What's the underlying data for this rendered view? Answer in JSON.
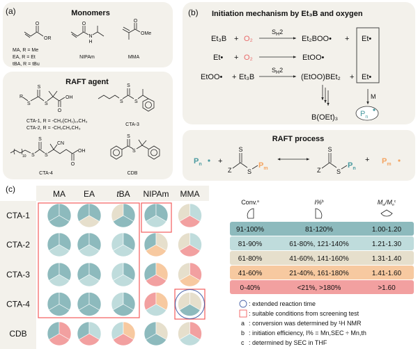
{
  "panel_a": {
    "label": "(a)",
    "monomers_title": "Monomers",
    "acrylate": {
      "O": "O",
      "OR": "OR",
      "names": [
        "MA,  R = Me",
        "EA,  R = Et",
        "tBA,  R = tBu"
      ]
    },
    "nipam": {
      "O": "O",
      "N": "N",
      "H": "H",
      "name": "NIPAm"
    },
    "mma": {
      "O": "O",
      "OMe": "OMe",
      "name": "MMA"
    },
    "raft_title": "RAFT agent",
    "cta12": {
      "R": "R",
      "S1": "S",
      "S2": "S",
      "S3": "S",
      "OH": "OH",
      "O": "O",
      "names": [
        "CTA-1, R = -CH₂(CH₂)₁₀CH₃",
        "CTA-2, R = -CH₂CH₂CH₃"
      ]
    },
    "cta3": {
      "S1": "S",
      "S2": "S",
      "S3": "S",
      "name": "CTA-3"
    },
    "cta4": {
      "n": "10",
      "S1": "S",
      "S2": "S",
      "S3": "S",
      "CN": "CN",
      "OH": "OH",
      "O": "O",
      "name": "CTA-4"
    },
    "cdb": {
      "S1": "S",
      "S2": "S",
      "name": "CDB"
    }
  },
  "panel_b": {
    "label": "(b)",
    "title": "Initiation mechanism by Et₃B and oxygen",
    "row1": {
      "r1": "Et₃B",
      "plus1": "+",
      "r2": "O₂",
      "cond_S": "S",
      "cond_H": "H",
      "cond_2": "2",
      "p1": "Et₂BOO•",
      "plus2": "+",
      "p2": "Et•"
    },
    "row2": {
      "r1": "Et•",
      "plus1": "+",
      "r2": "O₂",
      "p1": "EtOO•"
    },
    "row3": {
      "r1": "EtOO•",
      "plus1": "+",
      "r2": "Et₃B",
      "cond_S": "S",
      "cond_H": "H",
      "cond_2": "2",
      "p1": "(EtOO)BEt₂",
      "plus2": "+",
      "p2": "Et•"
    },
    "byproduct": "B(OEt)₃",
    "monomer": "M",
    "radical_P": "P",
    "radical_n": "n"
  },
  "raft_process": {
    "title": "RAFT process",
    "left_radical_P": "P",
    "left_radical_n": "n",
    "plus1": "+",
    "cta_left": {
      "Z": "Z",
      "S1": "S",
      "S2": "S",
      "P": "P",
      "m": "m"
    },
    "cta_right": {
      "Z": "Z",
      "S1": "S",
      "S2": "S",
      "P": "P",
      "n": "n"
    },
    "plus2": "+",
    "right_radical_P": "P",
    "right_radical_m": "m"
  },
  "chart_data": {
    "type": "pie-matrix",
    "label": "(c)",
    "columns": [
      "MA",
      "EA",
      "tBA",
      "NIPAm",
      "MMA"
    ],
    "rows": [
      "CTA-1",
      "CTA-2",
      "CTA-3",
      "CTA-4",
      "CDB"
    ],
    "sector_order": [
      "Conv. (top-left)",
      "I% (top-right)",
      "Mw/Mn (bottom)"
    ],
    "levels": [
      [
        [
          1,
          1,
          1
        ],
        [
          1,
          1,
          3
        ],
        [
          3,
          1,
          1
        ],
        [
          1,
          1,
          2
        ],
        [
          3,
          2,
          5
        ]
      ],
      [
        [
          1,
          1,
          2
        ],
        [
          1,
          1,
          2
        ],
        [
          2,
          1,
          2
        ],
        [
          1,
          3,
          4
        ],
        [
          3,
          2,
          5
        ]
      ],
      [
        [
          1,
          1,
          2
        ],
        [
          1,
          1,
          2
        ],
        [
          2,
          1,
          2
        ],
        [
          1,
          4,
          5
        ],
        [
          3,
          5,
          4
        ]
      ],
      [
        [
          1,
          1,
          1
        ],
        [
          1,
          1,
          1
        ],
        [
          2,
          1,
          1
        ],
        [
          5,
          4,
          2
        ],
        [
          3,
          3,
          1
        ]
      ],
      [
        [
          1,
          5,
          5
        ],
        [
          1,
          2,
          5
        ],
        [
          2,
          4,
          5
        ],
        [
          1,
          3,
          1
        ],
        [
          3,
          5,
          2
        ]
      ]
    ],
    "level_colors": {
      "1": "#8dbabd",
      "2": "#bfdcdc",
      "3": "#e6dfcc",
      "4": "#f7c9a0",
      "5": "#f2a0a0"
    },
    "highlight_boxes": [
      "MA–tBA × CTA-1–CTA-4",
      "NIPAm × CTA-1",
      "MMA × CTA-4"
    ],
    "extended_time": [
      "MMA × CTA-4"
    ]
  },
  "legend": {
    "headers": [
      {
        "main": "Conv.",
        "sup": "a"
      },
      {
        "main": "I%",
        "sup": "b"
      },
      {
        "M1": "M",
        "w": "w",
        "slash": "/",
        "M2": "M",
        "n": "n",
        "sup": "c"
      }
    ],
    "rows": [
      {
        "conv": "91-100%",
        "ie": "81-120%",
        "disp": "1.00-1.20",
        "color": "#8dbabd"
      },
      {
        "conv": "81-90%",
        "ie": "61-80%, 121-140%",
        "disp": "1.21-1.30",
        "color": "#bfdcdc"
      },
      {
        "conv": "61-80%",
        "ie": "41-60%, 141-160%",
        "disp": "1.31-1.40",
        "color": "#e6dfcc"
      },
      {
        "conv": "41-60%",
        "ie": "21-40%, 161-180%",
        "disp": "1.41-1.60",
        "color": "#f7c9a0"
      },
      {
        "conv": "0-40%",
        "ie": "<21%, >180%",
        "disp": ">1.60",
        "color": "#f2a0a0"
      }
    ],
    "notes": {
      "circle": ": extended reaction time",
      "square": ": suitable conditions from screening test",
      "a_key": "a",
      "a": ": conversion was determined by ¹H NMR",
      "b_key": "b",
      "b": ": initiation efficiency, I% = Mn,SEC ÷ Mn,th",
      "c_key": "c",
      "c": ": determined by SEC in THF"
    }
  }
}
